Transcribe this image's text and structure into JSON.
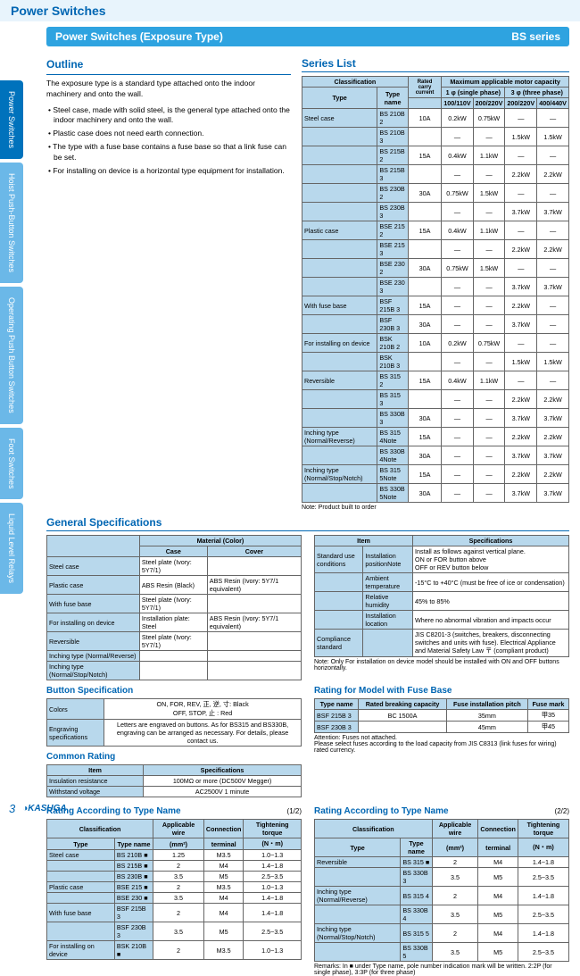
{
  "page_title": "Power Switches",
  "nav": [
    "Power Switches",
    "Hoist Push-Button Switches",
    "Operating Push Button Switches",
    "Foot Switches",
    "Liquid Level Relays"
  ],
  "header": {
    "title": "Power Switches (Exposure Type)",
    "series": "BS series"
  },
  "outline": {
    "title": "Outline",
    "intro": "The exposure type is a standard type attached onto the indoor machinery and onto the wall.",
    "bullets": [
      "• Steel case, made with solid steel, is the general type attached onto the indoor machinery and onto the wall.",
      "• Plastic case does not need earth connection.",
      "• The type with a fuse base contains a fuse base so that a link fuse can be set.",
      "• For installing on device is a horizontal type equipment for installation."
    ]
  },
  "series_list": {
    "title": "Series List",
    "header_rows": [
      [
        "Classification",
        "",
        "Rated",
        "Maximum applicable motor capacity",
        "",
        "",
        ""
      ],
      [
        "Type",
        "Type name",
        "carry current",
        "1 φ (single phase)",
        "",
        "3 φ (three phase)",
        ""
      ],
      [
        "",
        "",
        "",
        "100/110V",
        "200/220V",
        "200/220V",
        "400/440V"
      ]
    ],
    "rows": [
      [
        "Steel case",
        "BS 210B 2",
        "10A",
        "0.2kW",
        "0.75kW",
        "—",
        "—"
      ],
      [
        "",
        "BS 210B 3",
        "",
        "—",
        "—",
        "1.5kW",
        "1.5kW"
      ],
      [
        "",
        "BS 215B 2",
        "15A",
        "0.4kW",
        "1.1kW",
        "—",
        "—"
      ],
      [
        "",
        "BS 215B 3",
        "",
        "—",
        "—",
        "2.2kW",
        "2.2kW"
      ],
      [
        "",
        "BS 230B 2",
        "30A",
        "0.75kW",
        "1.5kW",
        "—",
        "—"
      ],
      [
        "",
        "BS 230B 3",
        "",
        "—",
        "—",
        "3.7kW",
        "3.7kW"
      ],
      [
        "Plastic case",
        "BSE 215 2",
        "15A",
        "0.4kW",
        "1.1kW",
        "—",
        "—"
      ],
      [
        "",
        "BSE 215 3",
        "",
        "—",
        "—",
        "2.2kW",
        "2.2kW"
      ],
      [
        "",
        "BSE 230 2",
        "30A",
        "0.75kW",
        "1.5kW",
        "—",
        "—"
      ],
      [
        "",
        "BSE 230 3",
        "",
        "—",
        "—",
        "3.7kW",
        "3.7kW"
      ],
      [
        "With fuse base",
        "BSF 215B 3",
        "15A",
        "—",
        "—",
        "2.2kW",
        "—"
      ],
      [
        "",
        "BSF 230B 3",
        "30A",
        "—",
        "—",
        "3.7kW",
        "—"
      ],
      [
        "For installing on device",
        "BSK 210B 2",
        "10A",
        "0.2kW",
        "0.75kW",
        "—",
        "—"
      ],
      [
        "",
        "BSK 210B 3",
        "",
        "—",
        "—",
        "1.5kW",
        "1.5kW"
      ],
      [
        "Reversible",
        "BS 315 2",
        "15A",
        "0.4kW",
        "1.1kW",
        "—",
        "—"
      ],
      [
        "",
        "BS 315 3",
        "",
        "—",
        "—",
        "2.2kW",
        "2.2kW"
      ],
      [
        "",
        "BS 330B 3",
        "30A",
        "—",
        "—",
        "3.7kW",
        "3.7kW"
      ],
      [
        "Inching type (Normal/Reverse)",
        "BS 315 4Note",
        "15A",
        "—",
        "—",
        "2.2kW",
        "2.2kW"
      ],
      [
        "",
        "BS 330B 4Note",
        "30A",
        "—",
        "—",
        "3.7kW",
        "3.7kW"
      ],
      [
        "Inching type (Normal/Stop/Notch)",
        "BS 315 5Note",
        "15A",
        "—",
        "—",
        "2.2kW",
        "2.2kW"
      ],
      [
        "",
        "BS 330B 5Note",
        "30A",
        "—",
        "—",
        "3.7kW",
        "3.7kW"
      ]
    ],
    "note": "Note: Product built to order"
  },
  "general": {
    "title": "General Specifications",
    "material": {
      "header": [
        "",
        "Material (Color)",
        ""
      ],
      "sub": [
        "",
        "Case",
        "Cover"
      ],
      "rows": [
        [
          "Steel case",
          "Steel plate (Ivory: 5Y7/1)",
          ""
        ],
        [
          "Plastic case",
          "ABS Resin (Black)",
          "ABS Resin (Ivory: 5Y7/1 equivalent)"
        ],
        [
          "With fuse base",
          "Steel plate (Ivory: 5Y7/1)",
          ""
        ],
        [
          "For installing on device",
          "Installation plate: Steel",
          "ABS Resin (Ivory: 5Y7/1 equivalent)"
        ],
        [
          "Reversible",
          "Steel plate (Ivory: 5Y7/1)",
          ""
        ],
        [
          "Inching type (Normal/Reverse)",
          "",
          ""
        ],
        [
          "Inching type (Normal/Stop/Notch)",
          "",
          ""
        ]
      ]
    },
    "install": {
      "header": [
        "Item",
        "",
        "Specifications"
      ],
      "rows": [
        [
          "Standard use conditions",
          "Installation positionNote",
          "Install as follows against vertical plane.\nON or FOR button above\nOFF or REV button below"
        ],
        [
          "",
          "Ambient temperature",
          "-15°C to +40°C (must be free of ice or condensation)"
        ],
        [
          "",
          "Relative humidity",
          "45% to 85%"
        ],
        [
          "",
          "Installation location",
          "Where no abnormal vibration and impacts occur"
        ],
        [
          "Compliance standard",
          "",
          "JIS C8201-3 (switches, breakers, disconnecting switches and units with fuse). Electrical Appliance and Material Safety Law  〒 (compliant product)"
        ]
      ],
      "note": "Note: Only For installation on device model should be installed with ON and OFF buttons horizontally."
    },
    "button": {
      "title": "Button Specification",
      "rows": [
        [
          "Colors",
          "ON, FOR, REV, 正, 逆, 寸: Black\nOFF, STOP, 止           : Red"
        ],
        [
          "Engraving specifications",
          "Letters are engraved on buttons. As for BS315 and BS330B, engraving can be arranged as necessary. For details, please contact us."
        ]
      ]
    },
    "common": {
      "title": "Common Rating",
      "header": [
        "Item",
        "Specifications"
      ],
      "rows": [
        [
          "Insulation resistance",
          "100MΩ or more (DC500V Megger)"
        ],
        [
          "Withstand voltage",
          "AC2500V  1 minute"
        ]
      ]
    },
    "fuse_rating": {
      "title": "Rating for Model with Fuse Base",
      "header": [
        "Type name",
        "Rated breaking capacity",
        "Fuse installation pitch",
        "Fuse mark"
      ],
      "rows": [
        [
          "BSF 215B 3",
          "BC 1500A",
          "35mm",
          "甲35"
        ],
        [
          "BSF 230B 3",
          "",
          "45mm",
          "甲45"
        ]
      ],
      "note": "Attention: Fuses not attached.\nPlease select fuses according to the load capacity from JIS C8313 (link fuses for wiring) rated currency."
    },
    "rating1": {
      "title": "Rating According to Type Name",
      "page": "(1/2)",
      "header": [
        "Classification",
        "",
        "Applicable wire",
        "Connection",
        "Tightening torque"
      ],
      "sub": [
        "Type",
        "Type name",
        "(mm²)",
        "terminal",
        "(N・m)"
      ],
      "rows": [
        [
          "Steel case",
          "BS 210B ■",
          "1.25",
          "M3.5",
          "1.0~1.3"
        ],
        [
          "",
          "BS 215B ■",
          "2",
          "M4",
          "1.4~1.8"
        ],
        [
          "",
          "BS 230B ■",
          "3.5",
          "M5",
          "2.5~3.5"
        ],
        [
          "Plastic case",
          "BSE 215 ■",
          "2",
          "M3.5",
          "1.0~1.3"
        ],
        [
          "",
          "BSE 230 ■",
          "3.5",
          "M4",
          "1.4~1.8"
        ],
        [
          "With fuse base",
          "BSF 215B 3",
          "2",
          "M4",
          "1.4~1.8"
        ],
        [
          "",
          "BSF 230B 3",
          "3.5",
          "M5",
          "2.5~3.5"
        ],
        [
          "For installing on device",
          "BSK 210B ■",
          "2",
          "M3.5",
          "1.0~1.3"
        ]
      ]
    },
    "rating2": {
      "title": "Rating According to Type Name",
      "page": "(2/2)",
      "header": [
        "Classification",
        "",
        "Applicable wire",
        "Connection",
        "Tightening torque"
      ],
      "sub": [
        "Type",
        "Type name",
        "(mm²)",
        "terminal",
        "(N・m)"
      ],
      "rows": [
        [
          "Reversible",
          "BS 315 ■",
          "2",
          "M4",
          "1.4~1.8"
        ],
        [
          "",
          "BS 330B 3",
          "3.5",
          "M5",
          "2.5~3.5"
        ],
        [
          "Inching type (Normal/Reverse)",
          "BS 315 4",
          "2",
          "M4",
          "1.4~1.8"
        ],
        [
          "",
          "BS 330B 4",
          "3.5",
          "M5",
          "2.5~3.5"
        ],
        [
          "Inching type (Normal/Stop/Notch)",
          "BS 315 5",
          "2",
          "M4",
          "1.4~1.8"
        ],
        [
          "",
          "BS 330B 5",
          "3.5",
          "M5",
          "2.5~3.5"
        ]
      ],
      "note": "Remarks: In ■ under Type name, pole number indication mark will be written. 2:2P (for single phase), 3:3P (for three phase)"
    }
  },
  "footer": {
    "page": "3",
    "brand": "KASUGA"
  }
}
